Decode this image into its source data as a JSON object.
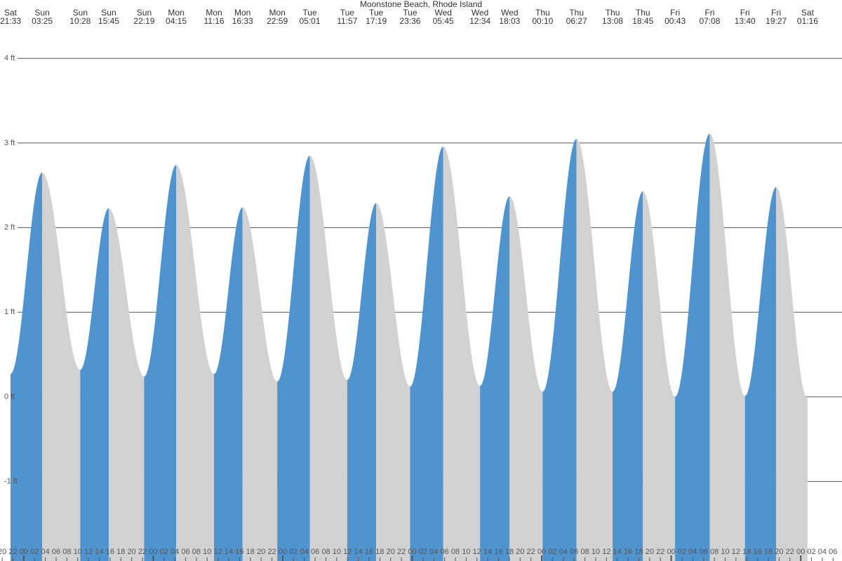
{
  "chart_data": {
    "type": "tide",
    "title": "Moonstone Beach, Rhode Island",
    "rise_color": "#4f93cf",
    "fall_color": "#d2d2d2",
    "xlim": [
      19.6,
      175.65
    ],
    "ylim": [
      -1.94,
      4.69
    ],
    "yticks": [
      {
        "value": -1,
        "label": "-1 ft"
      },
      {
        "value": 0,
        "label": "0 ft"
      },
      {
        "value": 1,
        "label": "1 ft"
      },
      {
        "value": 2,
        "label": "2 ft"
      },
      {
        "value": 3,
        "label": "3 ft"
      },
      {
        "value": 4,
        "label": "4 ft"
      }
    ],
    "grid": true,
    "events": [
      {
        "day": "Sat",
        "time": "21:33",
        "height": 0.27
      },
      {
        "day": "Sun",
        "time": "03:25",
        "height": 2.65
      },
      {
        "day": "Sun",
        "time": "10:28",
        "height": 0.32
      },
      {
        "day": "Sun",
        "time": "15:45",
        "height": 2.23
      },
      {
        "day": "Sun",
        "time": "22:19",
        "height": 0.24
      },
      {
        "day": "Mon",
        "time": "04:15",
        "height": 2.74
      },
      {
        "day": "Mon",
        "time": "11:16",
        "height": 0.27
      },
      {
        "day": "Mon",
        "time": "16:33",
        "height": 2.24
      },
      {
        "day": "Mon",
        "time": "22:59",
        "height": 0.18
      },
      {
        "day": "Tue",
        "time": "05:01",
        "height": 2.85
      },
      {
        "day": "Tue",
        "time": "11:57",
        "height": 0.2
      },
      {
        "day": "Tue",
        "time": "17:19",
        "height": 2.29
      },
      {
        "day": "Tue",
        "time": "23:36",
        "height": 0.12
      },
      {
        "day": "Wed",
        "time": "05:45",
        "height": 2.96
      },
      {
        "day": "Wed",
        "time": "12:34",
        "height": 0.13
      },
      {
        "day": "Wed",
        "time": "18:03",
        "height": 2.37
      },
      {
        "day": "Thu",
        "time": "00:10",
        "height": 0.06
      },
      {
        "day": "Thu",
        "time": "06:27",
        "height": 3.05
      },
      {
        "day": "Thu",
        "time": "13:08",
        "height": 0.06
      },
      {
        "day": "Thu",
        "time": "18:45",
        "height": 2.43
      },
      {
        "day": "Fri",
        "time": "00:43",
        "height": 0.0
      },
      {
        "day": "Fri",
        "time": "07:08",
        "height": 3.11
      },
      {
        "day": "Fri",
        "time": "13:40",
        "height": 0.01
      },
      {
        "day": "Fri",
        "time": "19:27",
        "height": 2.48
      },
      {
        "day": "Sat",
        "time": "01:16",
        "height": -0.02
      }
    ],
    "xticks": [
      {
        "value": 20,
        "label": "20"
      },
      {
        "value": 22,
        "label": "22"
      },
      {
        "value": 24,
        "label": "00"
      },
      {
        "value": 26,
        "label": "02"
      },
      {
        "value": 28,
        "label": "04"
      },
      {
        "value": 30,
        "label": "06"
      },
      {
        "value": 32,
        "label": "08"
      },
      {
        "value": 34,
        "label": "10"
      },
      {
        "value": 36,
        "label": "12"
      },
      {
        "value": 38,
        "label": "14"
      },
      {
        "value": 40,
        "label": "16"
      },
      {
        "value": 42,
        "label": "18"
      },
      {
        "value": 44,
        "label": "20"
      },
      {
        "value": 46,
        "label": "22"
      },
      {
        "value": 48,
        "label": "00"
      },
      {
        "value": 50,
        "label": "02"
      },
      {
        "value": 52,
        "label": "04"
      },
      {
        "value": 54,
        "label": "06"
      },
      {
        "value": 56,
        "label": "08"
      },
      {
        "value": 58,
        "label": "10"
      },
      {
        "value": 60,
        "label": "12"
      },
      {
        "value": 62,
        "label": "14"
      },
      {
        "value": 64,
        "label": "16"
      },
      {
        "value": 66,
        "label": "18"
      },
      {
        "value": 68,
        "label": "20"
      },
      {
        "value": 70,
        "label": "22"
      },
      {
        "value": 72,
        "label": "00"
      },
      {
        "value": 74,
        "label": "02"
      },
      {
        "value": 76,
        "label": "04"
      },
      {
        "value": 78,
        "label": "06"
      },
      {
        "value": 80,
        "label": "08"
      },
      {
        "value": 82,
        "label": "10"
      },
      {
        "value": 84,
        "label": "12"
      },
      {
        "value": 86,
        "label": "14"
      },
      {
        "value": 88,
        "label": "16"
      },
      {
        "value": 90,
        "label": "18"
      },
      {
        "value": 92,
        "label": "20"
      },
      {
        "value": 94,
        "label": "22"
      },
      {
        "value": 96,
        "label": "00"
      },
      {
        "value": 98,
        "label": "02"
      },
      {
        "value": 100,
        "label": "04"
      },
      {
        "value": 102,
        "label": "06"
      },
      {
        "value": 104,
        "label": "08"
      },
      {
        "value": 106,
        "label": "10"
      },
      {
        "value": 108,
        "label": "12"
      },
      {
        "value": 110,
        "label": "14"
      },
      {
        "value": 112,
        "label": "16"
      },
      {
        "value": 114,
        "label": "18"
      },
      {
        "value": 116,
        "label": "20"
      },
      {
        "value": 118,
        "label": "22"
      },
      {
        "value": 120,
        "label": "00"
      },
      {
        "value": 122,
        "label": "02"
      },
      {
        "value": 124,
        "label": "04"
      },
      {
        "value": 126,
        "label": "06"
      },
      {
        "value": 128,
        "label": "08"
      },
      {
        "value": 130,
        "label": "10"
      },
      {
        "value": 132,
        "label": "12"
      },
      {
        "value": 134,
        "label": "14"
      },
      {
        "value": 136,
        "label": "16"
      },
      {
        "value": 138,
        "label": "18"
      },
      {
        "value": 140,
        "label": "20"
      },
      {
        "value": 142,
        "label": "22"
      },
      {
        "value": 144,
        "label": "00"
      },
      {
        "value": 146,
        "label": "02"
      },
      {
        "value": 148,
        "label": "04"
      },
      {
        "value": 150,
        "label": "06"
      },
      {
        "value": 152,
        "label": "08"
      },
      {
        "value": 154,
        "label": "10"
      },
      {
        "value": 156,
        "label": "12"
      },
      {
        "value": 158,
        "label": "14"
      },
      {
        "value": 160,
        "label": "16"
      },
      {
        "value": 162,
        "label": "18"
      },
      {
        "value": 164,
        "label": "20"
      },
      {
        "value": 166,
        "label": "22"
      },
      {
        "value": 168,
        "label": "00"
      },
      {
        "value": 170,
        "label": "02"
      },
      {
        "value": 172,
        "label": "04"
      },
      {
        "value": 174,
        "label": "06"
      }
    ]
  }
}
